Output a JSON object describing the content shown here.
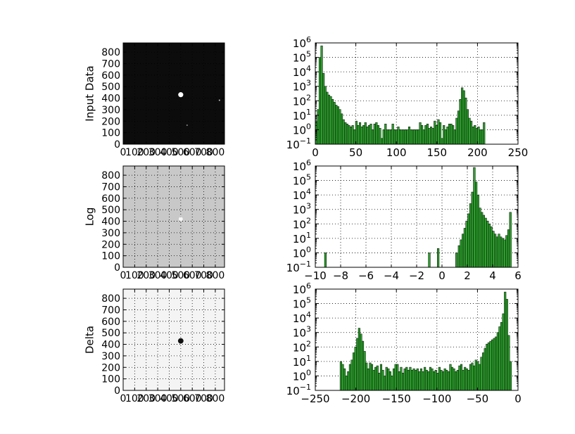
{
  "figure": {
    "background": "#ffffff"
  },
  "colors": {
    "bar_fill": "#2ca02c",
    "bar_edge": "#000000",
    "grid": "#000000"
  },
  "chart_data": [
    {
      "type": "heatmap",
      "subplot": "image-1",
      "ylabel": "Input Data",
      "background": "#0c0c0c",
      "xticks": [
        "0",
        "100",
        "200",
        "300",
        "400",
        "500",
        "600",
        "700",
        "800"
      ],
      "yticks": [
        "0",
        "100",
        "200",
        "300",
        "400",
        "500",
        "600",
        "700",
        "800"
      ],
      "xlim": [
        0,
        880
      ],
      "ylim": [
        0,
        880
      ],
      "features": [
        {
          "kind": "spot",
          "x": 500,
          "y": 430,
          "r": 22,
          "color": "#ffffff"
        },
        {
          "kind": "dot",
          "x": 836,
          "y": 382,
          "r": 5,
          "color": "#cfcfcf"
        },
        {
          "kind": "dot",
          "x": 555,
          "y": 165,
          "r": 4,
          "color": "#8a8a8a"
        }
      ],
      "grid": true
    },
    {
      "type": "bar",
      "subplot": "hist-1",
      "ylabel_scale": "log",
      "yticks": [
        "10^-1",
        "10^0",
        "10^1",
        "10^2",
        "10^3",
        "10^4",
        "10^5",
        "10^6"
      ],
      "xticks": [
        "0",
        "50",
        "100",
        "150",
        "200",
        "250"
      ],
      "xlim": [
        0,
        250
      ],
      "ylim_exp": [
        -1,
        6
      ],
      "bin_start": 0,
      "bin_width": 2.25,
      "log10_counts": [
        0.6,
        1.4,
        5.0,
        5.8,
        3.9,
        3.0,
        2.6,
        2.4,
        2.3,
        2.1,
        1.9,
        1.7,
        1.6,
        1.4,
        1.1,
        0.7,
        0.5,
        0.4,
        0.3,
        0.2,
        0.3,
        0.0,
        0.6,
        0.3,
        0.5,
        0.2,
        0.3,
        0.5,
        0.2,
        0.3,
        0.4,
        0.0,
        0.4,
        0.5,
        0.3,
        0.1,
        -0.6,
        0.0,
        0.4,
        0.0,
        0.0,
        0.0,
        0.4,
        0.0,
        0.0,
        0.2,
        0.0,
        0.0,
        0.0,
        0.0,
        0.0,
        0.2,
        0.0,
        0.0,
        0.0,
        0.0,
        0.0,
        0.5,
        0.3,
        0.0,
        0.3,
        0.4,
        0.1,
        0.2,
        0.1,
        0.6,
        0.3,
        0.7,
        0.5,
        -0.6,
        0.3,
        0.0,
        0.2,
        0.4,
        0.4,
        0.3,
        0.0,
        0.8,
        1.3,
        2.1,
        2.9,
        2.7,
        2.2,
        1.4,
        0.8,
        0.6,
        0.2,
        0.3,
        0.1,
        0.2,
        0.0,
        0.0,
        0.5,
        -1,
        -1,
        -1,
        -1,
        -1,
        -1,
        -1
      ],
      "grid": true
    },
    {
      "type": "heatmap",
      "subplot": "image-2",
      "ylabel": "Log",
      "background": "#c8c8c8",
      "xticks": [
        "0",
        "100",
        "200",
        "300",
        "400",
        "500",
        "600",
        "700",
        "800"
      ],
      "yticks": [
        "0",
        "100",
        "200",
        "300",
        "400",
        "500",
        "600",
        "700",
        "800"
      ],
      "xlim": [
        0,
        880
      ],
      "ylim": [
        0,
        880
      ],
      "features": [
        {
          "kind": "spot",
          "x": 500,
          "y": 420,
          "r": 18,
          "color": "#f6f6f6"
        }
      ],
      "grid": true
    },
    {
      "type": "bar",
      "subplot": "hist-2",
      "ylabel_scale": "log",
      "yticks": [
        "10^-1",
        "10^0",
        "10^1",
        "10^2",
        "10^3",
        "10^4",
        "10^5",
        "10^6"
      ],
      "xticks": [
        "−10",
        "−8",
        "−6",
        "−4",
        "−2",
        "0",
        "2",
        "4",
        "6"
      ],
      "xlim": [
        -10,
        6
      ],
      "ylim_exp": [
        -1,
        6
      ],
      "bars": [
        {
          "x": -9.2,
          "v": 0.0
        },
        {
          "x": -1.0,
          "v": 0.0
        },
        {
          "x": -0.3,
          "v": 0.3
        },
        {
          "x": 1.15,
          "v": 0.0
        },
        {
          "x": 1.35,
          "v": 0.5
        },
        {
          "x": 1.5,
          "v": 0.9
        },
        {
          "x": 1.65,
          "v": 1.3
        },
        {
          "x": 1.8,
          "v": 1.7
        },
        {
          "x": 1.95,
          "v": 2.2
        },
        {
          "x": 2.1,
          "v": 2.7
        },
        {
          "x": 2.25,
          "v": 3.4
        },
        {
          "x": 2.4,
          "v": 4.2
        },
        {
          "x": 2.55,
          "v": 5.9
        },
        {
          "x": 2.7,
          "v": 4.9
        },
        {
          "x": 2.85,
          "v": 4.0
        },
        {
          "x": 3.0,
          "v": 3.1
        },
        {
          "x": 3.15,
          "v": 2.8
        },
        {
          "x": 3.3,
          "v": 2.6
        },
        {
          "x": 3.45,
          "v": 2.4
        },
        {
          "x": 3.6,
          "v": 2.2
        },
        {
          "x": 3.75,
          "v": 2.0
        },
        {
          "x": 3.9,
          "v": 1.8
        },
        {
          "x": 4.05,
          "v": 1.5
        },
        {
          "x": 4.2,
          "v": 1.3
        },
        {
          "x": 4.35,
          "v": 1.1
        },
        {
          "x": 4.5,
          "v": 1.3
        },
        {
          "x": 4.65,
          "v": 1.1
        },
        {
          "x": 4.8,
          "v": 1.0
        },
        {
          "x": 4.95,
          "v": 0.9
        },
        {
          "x": 5.1,
          "v": 1.2
        },
        {
          "x": 5.25,
          "v": 1.6
        },
        {
          "x": 5.4,
          "v": 2.8
        }
      ],
      "bar_width": 0.15,
      "grid": true
    },
    {
      "type": "heatmap",
      "subplot": "image-3",
      "ylabel": "Delta",
      "background": "#f4f4f4",
      "xticks": [
        "0",
        "100",
        "200",
        "300",
        "400",
        "500",
        "600",
        "700",
        "800"
      ],
      "yticks": [
        "0",
        "100",
        "200",
        "300",
        "400",
        "500",
        "600",
        "700",
        "800"
      ],
      "xlim": [
        0,
        880
      ],
      "ylim": [
        0,
        880
      ],
      "features": [
        {
          "kind": "spot",
          "x": 500,
          "y": 430,
          "r": 24,
          "color": "#101010"
        }
      ],
      "grid": true
    },
    {
      "type": "bar",
      "subplot": "hist-3",
      "ylabel_scale": "log",
      "yticks": [
        "10^-1",
        "10^0",
        "10^1",
        "10^2",
        "10^3",
        "10^4",
        "10^5",
        "10^6"
      ],
      "xticks": [
        "−250",
        "−200",
        "−150",
        "−100",
        "−50",
        "0"
      ],
      "xlim": [
        -250,
        0
      ],
      "ylim_exp": [
        -1,
        6
      ],
      "bin_start": -219.5,
      "bin_width": 2.25,
      "log10_counts": [
        1.0,
        0.8,
        0.5,
        0.0,
        0.3,
        0.8,
        1.1,
        1.6,
        2.0,
        2.6,
        3.3,
        2.9,
        2.4,
        1.7,
        0.9,
        0.5,
        0.9,
        0.8,
        0.4,
        0.6,
        0.7,
        0.2,
        0.8,
        0.4,
        0.0,
        0.6,
        0.5,
        0.3,
        0.0,
        0.5,
        0.8,
        0.8,
        0.3,
        0.6,
        0.2,
        0.5,
        0.6,
        0.4,
        0.6,
        0.4,
        0.5,
        0.4,
        0.5,
        0.3,
        0.5,
        0.3,
        0.6,
        0.4,
        0.3,
        0.6,
        0.5,
        0.3,
        0.4,
        0.2,
        0.6,
        0.4,
        0.3,
        0.5,
        0.4,
        0.3,
        0.8,
        0.6,
        0.5,
        0.3,
        0.4,
        0.7,
        0.8,
        0.4,
        0.6,
        0.5,
        0.4,
        0.8,
        0.9,
        0.7,
        1.1,
        1.0,
        0.8,
        1.3,
        1.6,
        1.9,
        2.2,
        2.3,
        2.4,
        2.5,
        2.6,
        2.7,
        3.0,
        3.4,
        3.7,
        4.3,
        5.8,
        5.3,
        2.8,
        1.0
      ]
    }
  ]
}
